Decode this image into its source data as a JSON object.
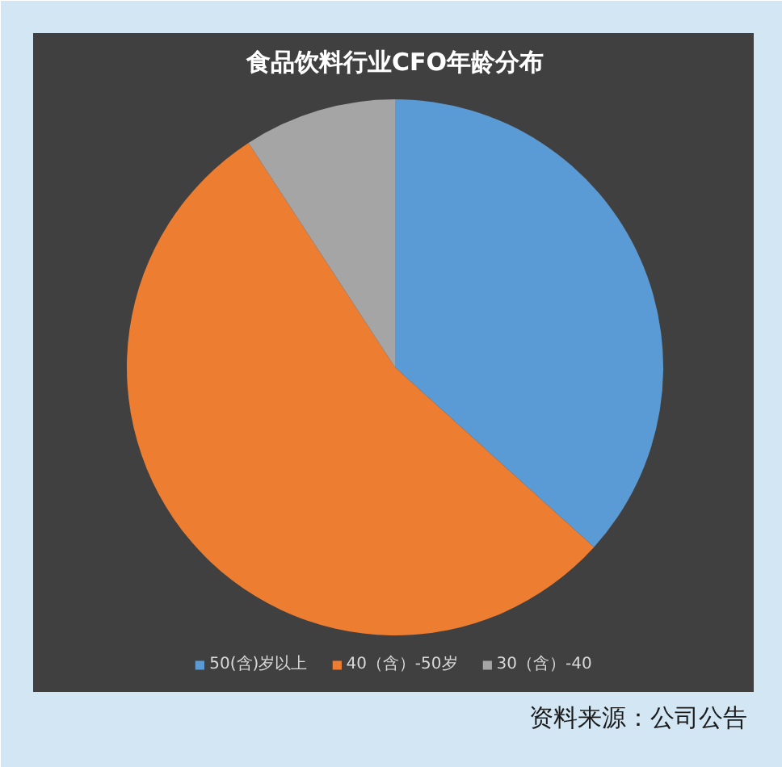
{
  "chart_data": {
    "type": "pie",
    "title": "食品饮料行业CFO年龄分布",
    "categories": [
      "50(含)岁以上",
      "40（含）-50岁",
      "30（含）-40"
    ],
    "values": [
      36.7,
      54.1,
      9.2
    ],
    "colors": [
      "#5b9bd5",
      "#ed7d31",
      "#a5a5a5"
    ],
    "legend": "bottom",
    "annotations": [
      "资料来源：公司公告"
    ]
  }
}
